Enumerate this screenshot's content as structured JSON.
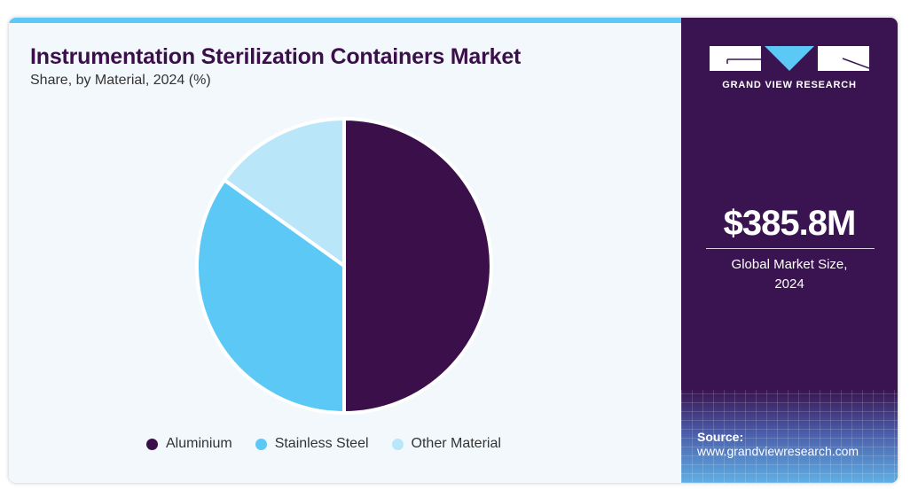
{
  "title": "Instrumentation Sterilization Containers Market",
  "subtitle": "Share, by Material, 2024 (%)",
  "chart_data": {
    "type": "pie",
    "title": "Instrumentation Sterilization Containers Market",
    "subtitle": "Share, by Material, 2024 (%)",
    "categories": [
      "Aluminium",
      "Stainless Steel",
      "Other Material"
    ],
    "values": [
      50.0,
      34.9,
      15.1
    ],
    "colors": [
      "#3b0f4a",
      "#5bc8f5",
      "#b9e6f8"
    ],
    "legend_position": "bottom"
  },
  "brand": {
    "name": "GRAND VIEW RESEARCH"
  },
  "market": {
    "value": "$385.8M",
    "label_line1": "Global Market Size,",
    "label_line2": "2024"
  },
  "source": {
    "label": "Source:",
    "url": "www.grandviewresearch.com"
  }
}
